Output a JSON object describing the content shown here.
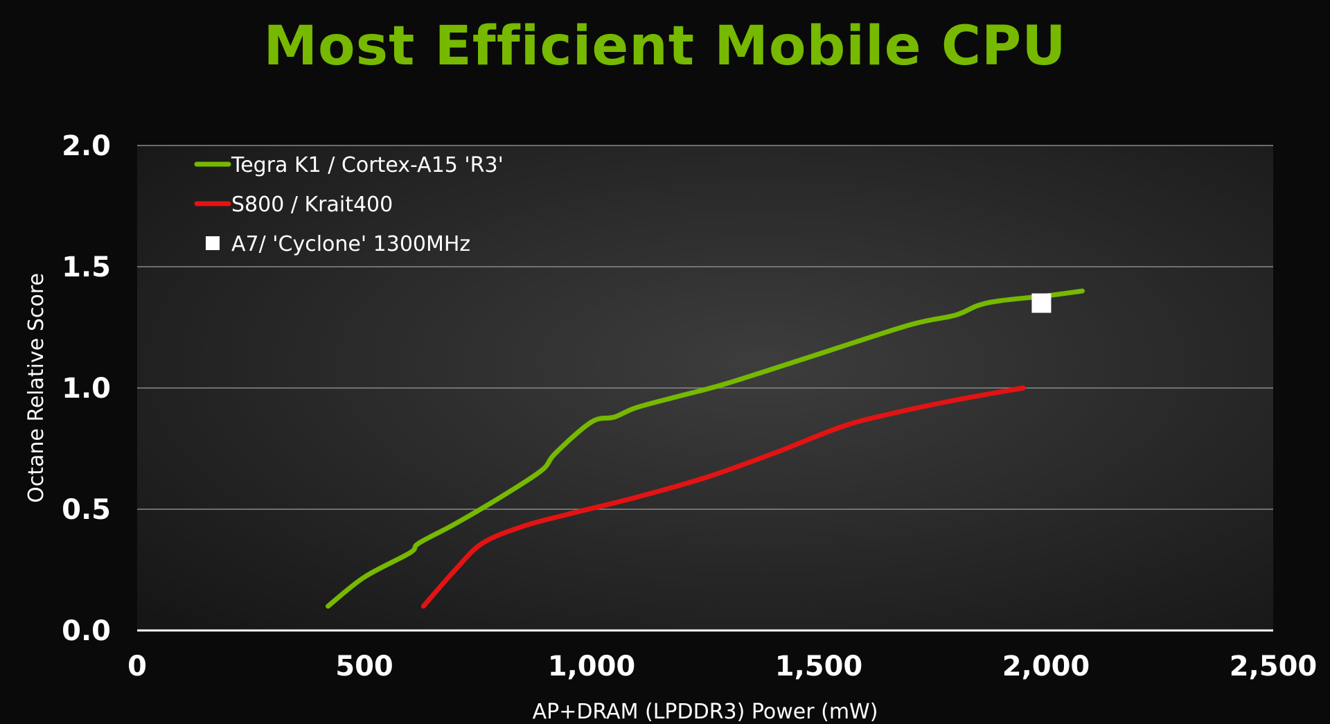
{
  "chart_data": {
    "type": "line",
    "title": "Most Efficient Mobile CPU",
    "xlabel": "AP+DRAM (LPDDR3) Power (mW)",
    "ylabel": "Octane Relative Score",
    "xlim": [
      0,
      2500
    ],
    "ylim": [
      0,
      2.0
    ],
    "xticks": [
      0,
      500,
      1000,
      1500,
      2000,
      2500
    ],
    "xtick_labels": [
      "0",
      "500",
      "1,000",
      "1,500",
      "2,000",
      "2,500"
    ],
    "yticks": [
      0,
      0.5,
      1.0,
      1.5,
      2.0
    ],
    "ytick_labels": [
      "0.0",
      "0.5",
      "1.0",
      "1.5",
      "2.0"
    ],
    "grid": true,
    "legend_position": "top-left",
    "series": [
      {
        "name": "Tegra K1 / Cortex-A15 'R3'",
        "color": "#76b900",
        "marker": "line",
        "x": [
          420,
          500,
          600,
          620,
          700,
          800,
          890,
          920,
          1000,
          1050,
          1100,
          1200,
          1300,
          1500,
          1700,
          1800,
          1850,
          1900,
          2000,
          2080
        ],
        "y": [
          0.1,
          0.22,
          0.32,
          0.36,
          0.44,
          0.55,
          0.66,
          0.73,
          0.86,
          0.88,
          0.92,
          0.97,
          1.02,
          1.14,
          1.26,
          1.3,
          1.34,
          1.36,
          1.38,
          1.4
        ]
      },
      {
        "name": "S800 / Krait400",
        "color": "#e31313",
        "marker": "line",
        "dashed_from_x": 1960,
        "x": [
          630,
          700,
          760,
          850,
          950,
          1100,
          1250,
          1400,
          1550,
          1650,
          1800,
          1950,
          2070
        ],
        "y": [
          0.1,
          0.25,
          0.36,
          0.43,
          0.48,
          0.55,
          0.63,
          0.73,
          0.84,
          0.89,
          0.95,
          1.0,
          1.0
        ]
      },
      {
        "name": "A7/ 'Cyclone' 1300MHz",
        "color": "#ffffff",
        "marker": "square",
        "x": [
          1990
        ],
        "y": [
          1.35
        ]
      }
    ]
  }
}
